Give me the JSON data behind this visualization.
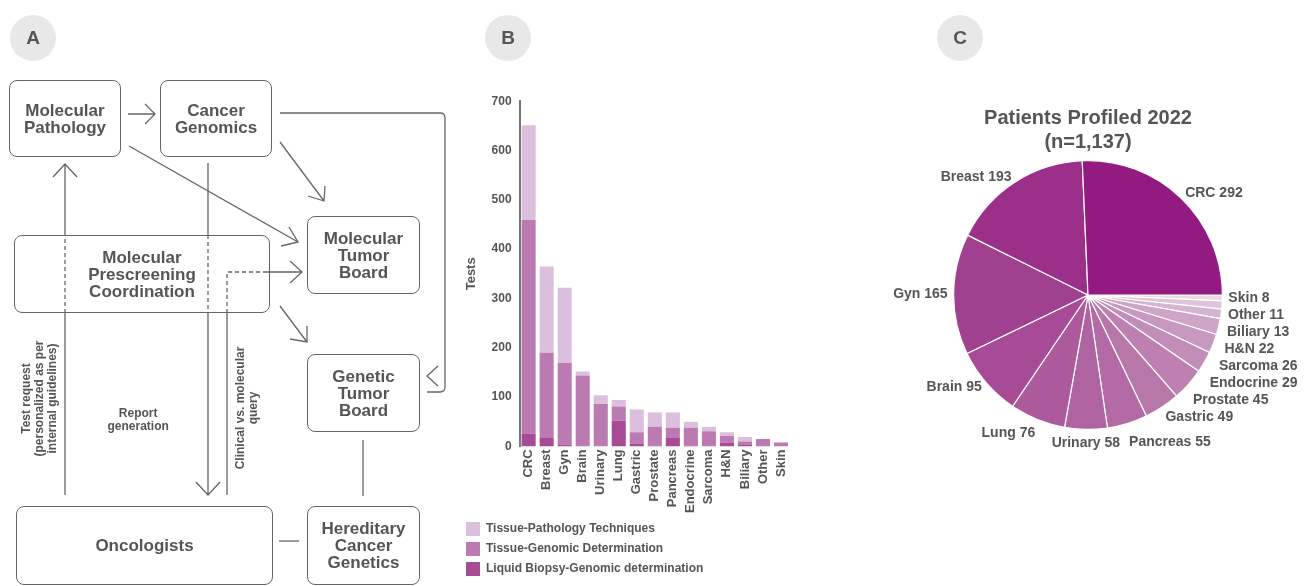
{
  "chart_data": [
    {
      "type": "other",
      "annotations": [
        "A",
        "Molecular\nPathology",
        "Cancer\nGenomics",
        "Molecular\nPrescreening\nCoordination",
        "Molecular\nTumor\nBoard",
        "Genetic\nTumor\nBoard",
        "Oncologists",
        "Hereditary\nCancer\nGenetics",
        "Test request\n(personalized as per\ninternal guidelines)",
        "Report\ngeneration",
        "Clinical vs. molecular\nquery"
      ]
    },
    {
      "type": "bar",
      "annotations": [
        "B"
      ],
      "ylabel": "Tests",
      "stacked": true,
      "legend": "bottom left",
      "grid": false,
      "categories": [
        "CRC",
        "Breast",
        "Gyn",
        "Brain",
        "Urinary",
        "Lung",
        "Gastric",
        "Prostate",
        "Pancreas",
        "Endocrine",
        "Sarcoma",
        "H&N",
        "Biliary",
        "Other",
        "Skin"
      ],
      "ylim": [
        0,
        700
      ],
      "yticks": [
        0,
        100,
        200,
        300,
        400,
        500,
        600,
        700
      ],
      "series": [
        {
          "name": "Liquid Biopsy-Genomic determination",
          "color": "#a84b96",
          "values": [
            26,
            17,
            4,
            0,
            0,
            52,
            6,
            2,
            17,
            2,
            0,
            8,
            3,
            0,
            0
          ]
        },
        {
          "name": "Tissue-Genomic Determination",
          "color": "#bb7ab1",
          "values": [
            433,
            173,
            165,
            144,
            86,
            29,
            23,
            38,
            21,
            36,
            31,
            13,
            7,
            15,
            8
          ]
        },
        {
          "name": "Tissue-Pathology Techniques",
          "color": "#dcbfdd",
          "values": [
            192,
            175,
            153,
            8,
            18,
            13,
            46,
            29,
            31,
            12,
            9,
            8,
            9,
            0,
            0
          ]
        }
      ]
    },
    {
      "type": "pie",
      "annotations": [
        "C"
      ],
      "title": "Patients Profiled 2022",
      "subtitle": "(n=1,137)",
      "legend": false,
      "data_labels": true,
      "categories": [
        "CRC",
        "Breast",
        "Gyn",
        "Brain",
        "Lung",
        "Urinary",
        "Pancreas",
        "Gastric",
        "Prostate",
        "Endocrine",
        "Sarcoma",
        "H&N",
        "Biliary",
        "Other",
        "Skin"
      ],
      "values": [
        292,
        193,
        165,
        95,
        76,
        58,
        55,
        49,
        45,
        29,
        26,
        22,
        13,
        11,
        8
      ],
      "colors": [
        "#931a81",
        "#9b2f8a",
        "#a0418f",
        "#a84b96",
        "#ad5a9d",
        "#b063a1",
        "#b46aa5",
        "#b877a9",
        "#bd80b1",
        "#c38dba",
        "#c898c0",
        "#cea4c7",
        "#d6b3d1",
        "#dfc5db",
        "#ebdbe8"
      ]
    }
  ]
}
